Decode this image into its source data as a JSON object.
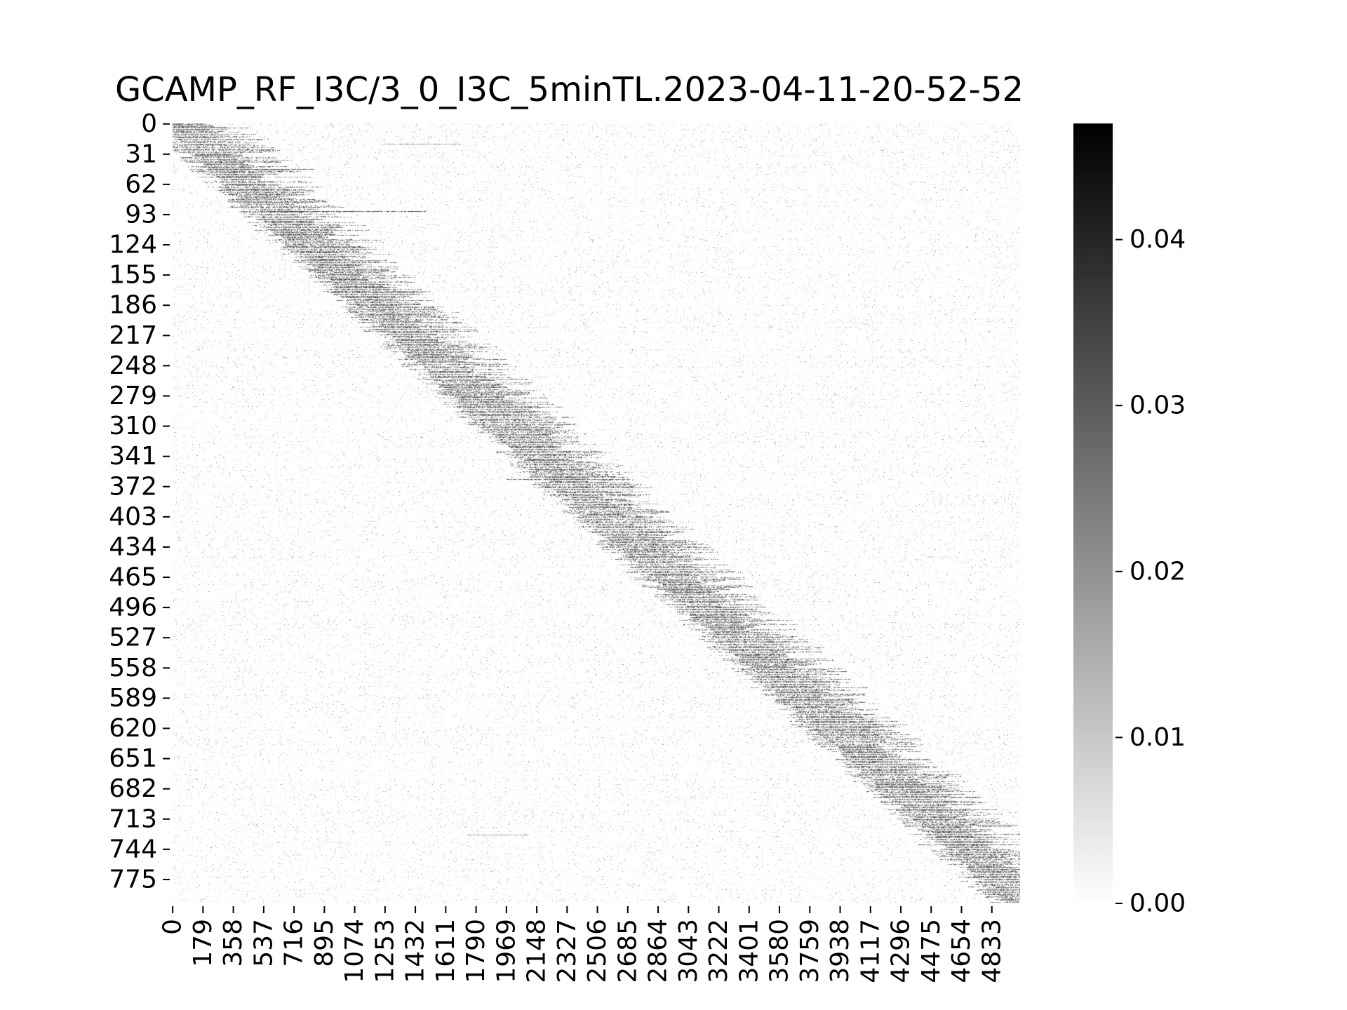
{
  "chart_data": {
    "type": "heatmap",
    "title": "GCAMP_RF_I3C/3_0_I3C_5minTL.2023-04-11-20-52-52",
    "xlabel": "",
    "ylabel": "",
    "n_rows": 800,
    "n_cols": 5000,
    "x_ticks": [
      "0",
      "179",
      "358",
      "537",
      "716",
      "895",
      "1074",
      "1253",
      "1432",
      "1611",
      "1790",
      "1969",
      "2148",
      "2327",
      "2506",
      "2685",
      "2864",
      "3043",
      "3222",
      "3401",
      "3580",
      "3759",
      "3938",
      "4117",
      "4296",
      "4475",
      "4654",
      "4833"
    ],
    "y_ticks": [
      "0",
      "31",
      "62",
      "93",
      "124",
      "155",
      "186",
      "217",
      "248",
      "279",
      "310",
      "341",
      "372",
      "403",
      "434",
      "465",
      "496",
      "527",
      "558",
      "589",
      "620",
      "651",
      "682",
      "713",
      "744",
      "775"
    ],
    "colorbar": {
      "colormap": "Greys",
      "low_color": "#ffffff",
      "high_color": "#000000",
      "vmin": 0.0,
      "vmax": 0.047,
      "ticks": [
        "0.00",
        "0.01",
        "0.02",
        "0.03",
        "0.04"
      ]
    },
    "pattern": "sparse activity sorted by peak time; diagonal band from top-left (row 0, col ~0) to bottom-right (row ~775, col ~4900)",
    "highlighted_rows": [
      {
        "row": 90,
        "x_start": 560,
        "x_end": 1500,
        "value": 0.045
      },
      {
        "row": 47,
        "x_start": 230,
        "x_end": 850,
        "value": 0.035
      },
      {
        "row": 365,
        "x_start": 1970,
        "x_end": 2700,
        "value": 0.04
      },
      {
        "row": 21,
        "x_start": 1250,
        "x_end": 1700,
        "value": 0.025
      },
      {
        "row": 730,
        "x_start": 1740,
        "x_end": 2100,
        "value": 0.025
      },
      {
        "row": 740,
        "x_start": 4400,
        "x_end": 5000,
        "value": 0.035
      },
      {
        "row": 720,
        "x_start": 4400,
        "x_end": 5000,
        "value": 0.03
      }
    ]
  }
}
